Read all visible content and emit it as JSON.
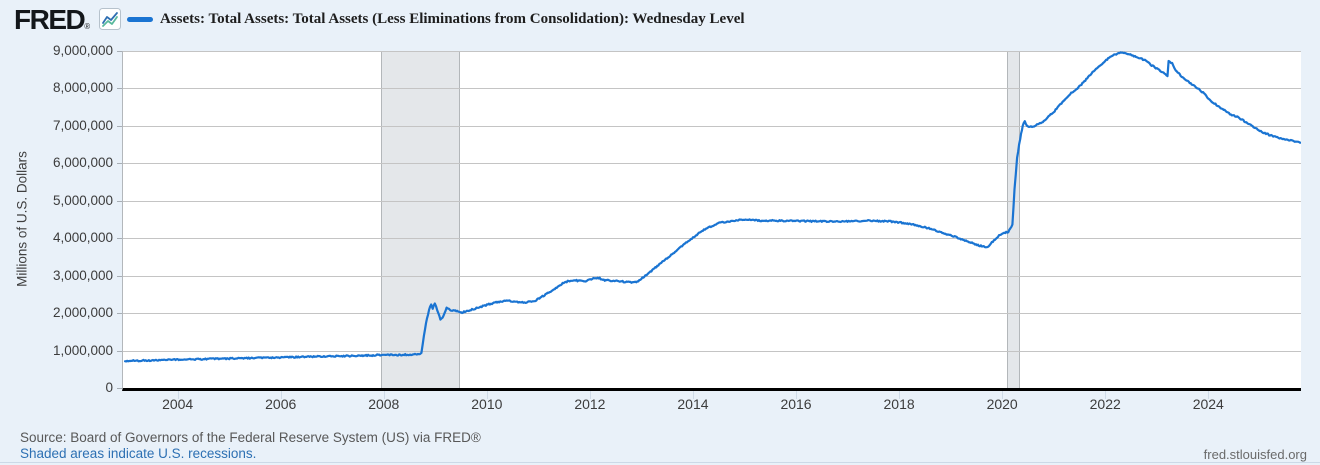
{
  "header": {
    "logo": "FRED",
    "registered_mark": "®"
  },
  "chart_data": {
    "type": "line",
    "title": "Assets: Total Assets: Total Assets (Less Eliminations from Consolidation): Wednesday Level",
    "xlabel": "",
    "ylabel": "Millions of U.S. Dollars",
    "x_range": [
      2002.92,
      2025.78
    ],
    "ylim": [
      0,
      9000000
    ],
    "grid": "horizontal",
    "legend_position": "top",
    "line_color": "#1a74d2",
    "recession_band_color": "#e4e7ea",
    "y_tick_labels": [
      "9,000,000",
      "8,000,000",
      "7,000,000",
      "6,000,000",
      "5,000,000",
      "4,000,000",
      "3,000,000",
      "2,000,000",
      "1,000,000",
      "0"
    ],
    "x_ticks": [
      {
        "year": 2004,
        "label": "2004"
      },
      {
        "year": 2006,
        "label": "2006"
      },
      {
        "year": 2008,
        "label": "2008"
      },
      {
        "year": 2010,
        "label": "2010"
      },
      {
        "year": 2012,
        "label": "2012"
      },
      {
        "year": 2014,
        "label": "2014"
      },
      {
        "year": 2016,
        "label": "2016"
      },
      {
        "year": 2018,
        "label": "2018"
      },
      {
        "year": 2020,
        "label": "2020"
      },
      {
        "year": 2022,
        "label": "2022"
      },
      {
        "year": 2024,
        "label": "2024"
      }
    ],
    "recession_bands": [
      {
        "start": 2007.92,
        "end": 2009.42
      },
      {
        "start": 2020.08,
        "end": 2020.29
      }
    ],
    "series": [
      {
        "name": "Assets: Total Assets: Total Assets (Less Eliminations from Consolidation): Wednesday Level",
        "units": "Millions of U.S. Dollars",
        "points": [
          [
            2002.96,
            719000
          ],
          [
            2003.2,
            730000
          ],
          [
            2003.5,
            738000
          ],
          [
            2004.0,
            758000
          ],
          [
            2004.5,
            772000
          ],
          [
            2005.0,
            788000
          ],
          [
            2005.5,
            800000
          ],
          [
            2006.0,
            818000
          ],
          [
            2006.5,
            832000
          ],
          [
            2007.0,
            852000
          ],
          [
            2007.5,
            858000
          ],
          [
            2007.95,
            885000
          ],
          [
            2008.3,
            880000
          ],
          [
            2008.55,
            898000
          ],
          [
            2008.68,
            905000
          ],
          [
            2008.71,
            950000
          ],
          [
            2008.74,
            1220000
          ],
          [
            2008.78,
            1560000
          ],
          [
            2008.82,
            1870000
          ],
          [
            2008.86,
            2080000
          ],
          [
            2008.9,
            2240000
          ],
          [
            2008.93,
            2120000
          ],
          [
            2008.97,
            2260000
          ],
          [
            2009.02,
            2070000
          ],
          [
            2009.08,
            1840000
          ],
          [
            2009.14,
            1920000
          ],
          [
            2009.2,
            2150000
          ],
          [
            2009.27,
            2080000
          ],
          [
            2009.35,
            2070000
          ],
          [
            2009.5,
            2020000
          ],
          [
            2009.65,
            2080000
          ],
          [
            2009.8,
            2140000
          ],
          [
            2010.0,
            2230000
          ],
          [
            2010.2,
            2300000
          ],
          [
            2010.4,
            2330000
          ],
          [
            2010.55,
            2300000
          ],
          [
            2010.75,
            2290000
          ],
          [
            2010.92,
            2330000
          ],
          [
            2011.1,
            2480000
          ],
          [
            2011.3,
            2650000
          ],
          [
            2011.45,
            2790000
          ],
          [
            2011.55,
            2850000
          ],
          [
            2011.7,
            2870000
          ],
          [
            2011.9,
            2860000
          ],
          [
            2012.05,
            2920000
          ],
          [
            2012.15,
            2940000
          ],
          [
            2012.25,
            2880000
          ],
          [
            2012.5,
            2860000
          ],
          [
            2012.75,
            2820000
          ],
          [
            2012.9,
            2840000
          ],
          [
            2013.0,
            2940000
          ],
          [
            2013.25,
            3210000
          ],
          [
            2013.5,
            3490000
          ],
          [
            2013.75,
            3770000
          ],
          [
            2014.0,
            4040000
          ],
          [
            2014.25,
            4270000
          ],
          [
            2014.5,
            4410000
          ],
          [
            2014.8,
            4480000
          ],
          [
            2015.0,
            4510000
          ],
          [
            2015.3,
            4470000
          ],
          [
            2015.6,
            4470000
          ],
          [
            2016.0,
            4460000
          ],
          [
            2016.5,
            4450000
          ],
          [
            2017.0,
            4450000
          ],
          [
            2017.4,
            4470000
          ],
          [
            2017.8,
            4450000
          ],
          [
            2018.0,
            4420000
          ],
          [
            2018.3,
            4350000
          ],
          [
            2018.6,
            4250000
          ],
          [
            2019.0,
            4070000
          ],
          [
            2019.3,
            3920000
          ],
          [
            2019.55,
            3800000
          ],
          [
            2019.7,
            3760000
          ],
          [
            2019.78,
            3880000
          ],
          [
            2019.9,
            4050000
          ],
          [
            2020.0,
            4140000
          ],
          [
            2020.1,
            4170000
          ],
          [
            2020.18,
            4360000
          ],
          [
            2020.22,
            5300000
          ],
          [
            2020.27,
            6150000
          ],
          [
            2020.33,
            6660000
          ],
          [
            2020.38,
            7010000
          ],
          [
            2020.42,
            7130000
          ],
          [
            2020.46,
            6990000
          ],
          [
            2020.52,
            6970000
          ],
          [
            2020.62,
            7010000
          ],
          [
            2020.75,
            7080000
          ],
          [
            2020.9,
            7280000
          ],
          [
            2021.0,
            7400000
          ],
          [
            2021.15,
            7630000
          ],
          [
            2021.3,
            7850000
          ],
          [
            2021.5,
            8080000
          ],
          [
            2021.65,
            8300000
          ],
          [
            2021.8,
            8520000
          ],
          [
            2022.0,
            8760000
          ],
          [
            2022.15,
            8900000
          ],
          [
            2022.3,
            8960000
          ],
          [
            2022.45,
            8910000
          ],
          [
            2022.6,
            8830000
          ],
          [
            2022.75,
            8760000
          ],
          [
            2022.9,
            8600000
          ],
          [
            2023.05,
            8470000
          ],
          [
            2023.15,
            8380000
          ],
          [
            2023.19,
            8340000
          ],
          [
            2023.21,
            8730000
          ],
          [
            2023.28,
            8680000
          ],
          [
            2023.35,
            8480000
          ],
          [
            2023.5,
            8270000
          ],
          [
            2023.7,
            8080000
          ],
          [
            2023.9,
            7870000
          ],
          [
            2024.0,
            7700000
          ],
          [
            2024.2,
            7500000
          ],
          [
            2024.4,
            7320000
          ],
          [
            2024.6,
            7200000
          ],
          [
            2024.8,
            7020000
          ],
          [
            2025.0,
            6850000
          ],
          [
            2025.2,
            6740000
          ],
          [
            2025.4,
            6660000
          ],
          [
            2025.6,
            6600000
          ],
          [
            2025.78,
            6550000
          ]
        ]
      }
    ]
  },
  "footer": {
    "source": "Source: Board of Governors of the Federal Reserve System (US) via FRED®",
    "recession_note": "Shaded areas indicate U.S. recessions.",
    "site": "fred.stlouisfed.org"
  }
}
